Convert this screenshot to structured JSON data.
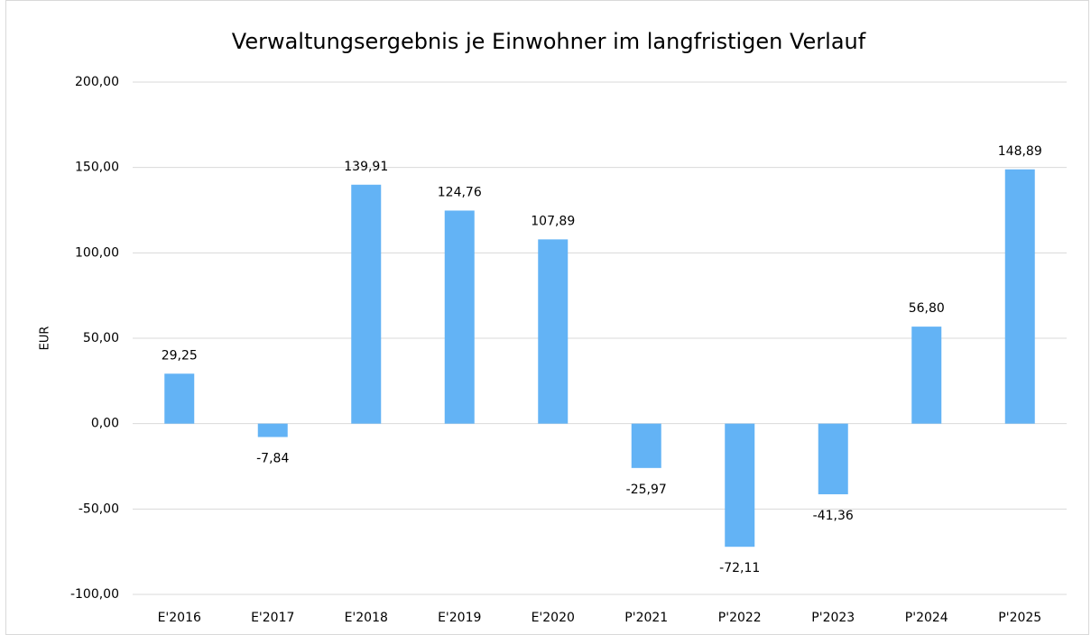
{
  "chart_data": {
    "type": "bar",
    "title": "Verwaltungsergebnis je Einwohner im langfristigen Verlauf",
    "y_label": "EUR",
    "categories": [
      "E'2016",
      "E'2017",
      "E'2018",
      "E'2019",
      "E'2020",
      "P'2021",
      "P'2022",
      "P'2023",
      "P'2024",
      "P'2025"
    ],
    "values": [
      29.25,
      -7.84,
      139.91,
      124.76,
      107.89,
      -25.97,
      -72.11,
      -41.36,
      56.8,
      148.89
    ],
    "value_labels": [
      "29,25",
      "-7,84",
      "139,91",
      "124,76",
      "107,89",
      "-25,97",
      "-72,11",
      "-41,36",
      "56,80",
      "148,89"
    ],
    "color": "#63b3f5",
    "ylim": [
      -100,
      200
    ],
    "yticks": [
      {
        "value": -100,
        "label": "-100,00"
      },
      {
        "value": -50,
        "label": "-50,00"
      },
      {
        "value": 0,
        "label": "0,00"
      },
      {
        "value": 50,
        "label": "50,00"
      },
      {
        "value": 100,
        "label": "100,00"
      },
      {
        "value": 150,
        "label": "150,00"
      },
      {
        "value": 200,
        "label": "200,00"
      }
    ],
    "grid": true
  }
}
